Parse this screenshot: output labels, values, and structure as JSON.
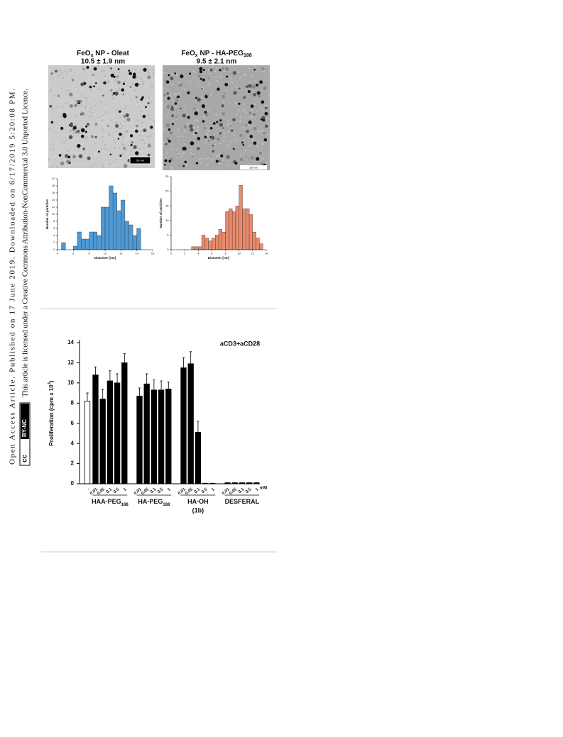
{
  "sidebar": {
    "line1": "Open Access Article. Published on 17 June 2019. Downloaded on 6/17/2019 5:20:08 PM.",
    "line2": "This article is licensed under a Creative Commons Attribution-NonCommercial 3.0 Unported Licence.",
    "badge": [
      "cc",
      "BY-NC"
    ]
  },
  "images": [
    {
      "scale_bar": "50 nm"
    },
    {
      "scale_bar": "100 nm"
    }
  ],
  "chart_data": [
    {
      "type": "histogram",
      "title": {
        "text": "FeO",
        "sub": "x",
        "rest": " NP - Oleat"
      },
      "subtitle": "10.5 ± 1.9 nm",
      "x_label": "Diameter [nm]",
      "y_label": "Number of particles",
      "bins": [
        4.5,
        5,
        5.5,
        6,
        6.5,
        7,
        7.5,
        8,
        8.5,
        9,
        9.5,
        10,
        10.5,
        11,
        11.5,
        12,
        12.5,
        13,
        13.5,
        14,
        14.5
      ],
      "counts": [
        2,
        0,
        0,
        1,
        5,
        3,
        3,
        5,
        5,
        4,
        12,
        12,
        18,
        16,
        11,
        14,
        8,
        7,
        4,
        6
      ],
      "color": "#4d9ad6",
      "xlim": [
        4,
        16
      ],
      "xticks": [
        4,
        6,
        8,
        10,
        12,
        14,
        16
      ],
      "ylim": [
        0,
        20
      ],
      "yticks": [
        0,
        2,
        4,
        6,
        8,
        10,
        12,
        14,
        16,
        18,
        20
      ]
    },
    {
      "type": "histogram",
      "title": {
        "text": "FeO",
        "sub": "x",
        "rest": " NP - HA-PEG",
        "sub2": "188"
      },
      "subtitle": "9.5 ± 2.1 nm",
      "x_label": "Diameter [nm]",
      "y_label": "Number of particles",
      "bins": [
        3,
        3.5,
        4,
        4.5,
        5,
        5.5,
        6,
        6.5,
        7,
        7.5,
        8,
        8.5,
        9,
        9.5,
        10,
        10.5,
        11,
        11.5,
        12,
        12.5,
        13,
        13.5
      ],
      "counts": [
        1,
        1,
        1,
        5,
        4,
        3,
        4,
        5,
        7,
        6,
        13,
        14,
        13,
        15,
        22,
        14,
        14,
        12,
        6,
        4,
        2
      ],
      "color": "#ea8a6c",
      "xlim": [
        0,
        14
      ],
      "xticks": [
        0,
        2,
        4,
        6,
        8,
        10,
        12,
        14
      ],
      "ylim": [
        0,
        25
      ],
      "yticks": [
        0,
        5,
        10,
        15,
        20,
        25
      ]
    },
    {
      "type": "bar",
      "annotation": "aCD3+aCD28",
      "y_label": {
        "text": "Proliferation (cpm x 10",
        "sup": "3",
        "rest": ")"
      },
      "unit": "mM",
      "categories": [
        "-",
        "0.01",
        "0.05",
        "0.1",
        "0.5",
        "1",
        "0.01",
        "0.05",
        "0.1",
        "0.5",
        "1",
        "0.01",
        "0.05",
        "0.1",
        "0.5",
        "1",
        "0.01",
        "0.05",
        "0.1",
        "0.5",
        "1"
      ],
      "values": [
        8.2,
        10.8,
        8.4,
        10.2,
        10.0,
        12.0,
        8.7,
        9.9,
        9.3,
        9.3,
        9.4,
        11.5,
        11.9,
        5.1,
        0.05,
        0.05,
        0.1,
        0.1,
        0.1,
        0.1,
        0.1
      ],
      "errors": [
        0.8,
        0.8,
        1.0,
        1.0,
        0.9,
        0.9,
        0.8,
        1.0,
        1.0,
        0.9,
        0.7,
        1.0,
        1.2,
        1.1,
        0,
        0,
        0,
        0,
        0,
        0,
        0
      ],
      "colors": [
        "#ffffff",
        "#000000",
        "#000000",
        "#000000",
        "#000000",
        "#000000",
        "#000000",
        "#000000",
        "#000000",
        "#000000",
        "#000000",
        "#000000",
        "#000000",
        "#000000",
        "#000000",
        "#000000",
        "#000000",
        "#000000",
        "#000000",
        "#000000",
        "#000000"
      ],
      "groups": [
        {
          "label": "HAA-PEG",
          "sub": "188"
        },
        {
          "label": "HA-PEG",
          "sub": "188"
        },
        {
          "label": "HA-OH",
          "line2": "(1b)"
        },
        {
          "label": "DESFERAL"
        }
      ],
      "ylim": [
        0,
        14
      ],
      "yticks": [
        0,
        2,
        4,
        6,
        8,
        10,
        12,
        14
      ]
    }
  ]
}
